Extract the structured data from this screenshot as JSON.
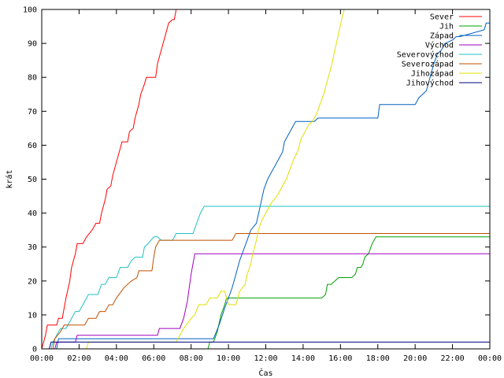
{
  "chart_data": {
    "type": "line",
    "title": "",
    "xlabel": "Čas",
    "ylabel": "krát",
    "x_unit": "hours",
    "xlim": [
      0,
      24
    ],
    "ylim": [
      0,
      100
    ],
    "x_ticks": [
      {
        "value": 0,
        "label": "00:00"
      },
      {
        "value": 2,
        "label": "02:00"
      },
      {
        "value": 4,
        "label": "04:00"
      },
      {
        "value": 6,
        "label": "06:00"
      },
      {
        "value": 8,
        "label": "08:00"
      },
      {
        "value": 10,
        "label": "10:00"
      },
      {
        "value": 12,
        "label": "12:00"
      },
      {
        "value": 14,
        "label": "14:00"
      },
      {
        "value": 16,
        "label": "16:00"
      },
      {
        "value": 18,
        "label": "18:00"
      },
      {
        "value": 20,
        "label": "20:00"
      },
      {
        "value": 22,
        "label": "22:00"
      },
      {
        "value": 24,
        "label": "00:00"
      }
    ],
    "y_ticks": [
      0,
      10,
      20,
      30,
      40,
      50,
      60,
      70,
      80,
      90,
      100
    ],
    "grid": false,
    "legend_position": "top-right",
    "series": [
      {
        "name": "Sever",
        "color": "#ff0000",
        "points": [
          [
            0,
            0
          ],
          [
            0.1,
            2
          ],
          [
            0.2,
            4
          ],
          [
            0.3,
            7
          ],
          [
            0.8,
            7
          ],
          [
            0.9,
            9
          ],
          [
            1.1,
            9
          ],
          [
            1.3,
            15
          ],
          [
            1.5,
            20
          ],
          [
            1.6,
            24
          ],
          [
            1.8,
            28
          ],
          [
            1.9,
            31
          ],
          [
            2.2,
            31
          ],
          [
            2.4,
            33
          ],
          [
            2.7,
            35
          ],
          [
            2.9,
            37
          ],
          [
            3.1,
            37
          ],
          [
            3.2,
            40
          ],
          [
            3.4,
            44
          ],
          [
            3.5,
            47
          ],
          [
            3.7,
            48
          ],
          [
            3.8,
            51
          ],
          [
            4,
            55
          ],
          [
            4.2,
            59
          ],
          [
            4.3,
            61
          ],
          [
            4.6,
            61
          ],
          [
            4.7,
            64
          ],
          [
            4.9,
            65
          ],
          [
            5,
            68
          ],
          [
            5.2,
            72
          ],
          [
            5.3,
            75
          ],
          [
            5.5,
            78
          ],
          [
            5.6,
            80
          ],
          [
            6.1,
            80
          ],
          [
            6.2,
            84
          ],
          [
            6.4,
            88
          ],
          [
            6.6,
            92
          ],
          [
            6.8,
            96
          ],
          [
            7,
            97
          ],
          [
            7.1,
            97
          ],
          [
            7.2,
            100
          ],
          [
            24,
            100
          ]
        ]
      },
      {
        "name": "Jih",
        "color": "#00a000",
        "points": [
          [
            0,
            0
          ],
          [
            8.9,
            0
          ],
          [
            9.0,
            2
          ],
          [
            9.2,
            2
          ],
          [
            9.4,
            5
          ],
          [
            9.6,
            10
          ],
          [
            9.8,
            13
          ],
          [
            9.9,
            15
          ],
          [
            10.4,
            15
          ],
          [
            10.6,
            15
          ],
          [
            11.0,
            15
          ],
          [
            11.2,
            15
          ],
          [
            15.0,
            15
          ],
          [
            15.2,
            16
          ],
          [
            15.3,
            19
          ],
          [
            15.5,
            19
          ],
          [
            15.9,
            21
          ],
          [
            16.6,
            21
          ],
          [
            16.8,
            22
          ],
          [
            16.9,
            24
          ],
          [
            17.1,
            24
          ],
          [
            17.2,
            25
          ],
          [
            17.3,
            27
          ],
          [
            17.5,
            28
          ],
          [
            17.7,
            31
          ],
          [
            17.9,
            33
          ],
          [
            18.9,
            33
          ],
          [
            19,
            33
          ],
          [
            24,
            33
          ]
        ]
      },
      {
        "name": "Západ",
        "color": "#0060c0",
        "points": [
          [
            0,
            0
          ],
          [
            0.8,
            0
          ],
          [
            0.9,
            3
          ],
          [
            1.2,
            3
          ],
          [
            9.0,
            3
          ],
          [
            9.2,
            3
          ],
          [
            9.5,
            7
          ],
          [
            9.8,
            12
          ],
          [
            10.0,
            15
          ],
          [
            10.2,
            18
          ],
          [
            10.4,
            22
          ],
          [
            10.6,
            26
          ],
          [
            10.8,
            29
          ],
          [
            11.0,
            32
          ],
          [
            11.2,
            35
          ],
          [
            11.5,
            37
          ],
          [
            11.7,
            42
          ],
          [
            11.9,
            47
          ],
          [
            12.1,
            50
          ],
          [
            12.3,
            52
          ],
          [
            12.5,
            54
          ],
          [
            12.7,
            56
          ],
          [
            12.9,
            58
          ],
          [
            13.0,
            61
          ],
          [
            13.2,
            63
          ],
          [
            13.4,
            65
          ],
          [
            13.6,
            67
          ],
          [
            14.6,
            67
          ],
          [
            14.8,
            68
          ],
          [
            16.2,
            68
          ],
          [
            18.0,
            68
          ],
          [
            18.1,
            72
          ],
          [
            20.0,
            72
          ],
          [
            20.2,
            74
          ],
          [
            20.6,
            76
          ],
          [
            20.8,
            80
          ],
          [
            21.0,
            84
          ],
          [
            21.2,
            87
          ],
          [
            21.4,
            88
          ],
          [
            21.6,
            90
          ],
          [
            22.0,
            91
          ],
          [
            22.2,
            92
          ],
          [
            22.4,
            92
          ],
          [
            23.7,
            94
          ],
          [
            23.8,
            96
          ],
          [
            24,
            96
          ]
        ]
      },
      {
        "name": "Východ",
        "color": "#a000c0",
        "points": [
          [
            0,
            0
          ],
          [
            0.7,
            0
          ],
          [
            0.8,
            2
          ],
          [
            1.0,
            2
          ],
          [
            1.8,
            2
          ],
          [
            1.9,
            4
          ],
          [
            6.2,
            4
          ],
          [
            6.3,
            6
          ],
          [
            7.4,
            6
          ],
          [
            7.6,
            9
          ],
          [
            7.8,
            14
          ],
          [
            7.9,
            18
          ],
          [
            8.0,
            22
          ],
          [
            8.1,
            25
          ],
          [
            8.2,
            28
          ],
          [
            24,
            28
          ]
        ]
      },
      {
        "name": "Severovýchod",
        "color": "#20c0c0",
        "points": [
          [
            0,
            0
          ],
          [
            0.5,
            0
          ],
          [
            0.6,
            2
          ],
          [
            0.8,
            4
          ],
          [
            1.0,
            6
          ],
          [
            1.3,
            6
          ],
          [
            1.6,
            9
          ],
          [
            1.8,
            11
          ],
          [
            2.0,
            11
          ],
          [
            2.2,
            13
          ],
          [
            2.5,
            16
          ],
          [
            3.0,
            16
          ],
          [
            3.2,
            19
          ],
          [
            3.4,
            19
          ],
          [
            3.6,
            21
          ],
          [
            4.0,
            21
          ],
          [
            4.2,
            24
          ],
          [
            4.6,
            24
          ],
          [
            4.8,
            26
          ],
          [
            5.0,
            27
          ],
          [
            5.4,
            27
          ],
          [
            5.5,
            30
          ],
          [
            5.7,
            31
          ],
          [
            6.0,
            33
          ],
          [
            6.2,
            33
          ],
          [
            6.4,
            32
          ],
          [
            7.0,
            32
          ],
          [
            7.2,
            34
          ],
          [
            8.1,
            34
          ],
          [
            8.3,
            37
          ],
          [
            8.5,
            40
          ],
          [
            8.7,
            42
          ],
          [
            24,
            42
          ]
        ]
      },
      {
        "name": "Severozápad",
        "color": "#c05000",
        "points": [
          [
            0,
            0
          ],
          [
            0.6,
            0
          ],
          [
            0.7,
            3
          ],
          [
            1.0,
            5
          ],
          [
            1.2,
            7
          ],
          [
            2.3,
            7
          ],
          [
            2.5,
            9
          ],
          [
            2.9,
            9
          ],
          [
            3.1,
            11
          ],
          [
            3.4,
            11
          ],
          [
            3.6,
            13
          ],
          [
            3.8,
            13
          ],
          [
            4.0,
            15
          ],
          [
            4.4,
            18
          ],
          [
            4.8,
            20
          ],
          [
            5.1,
            21
          ],
          [
            5.2,
            23
          ],
          [
            5.9,
            23
          ],
          [
            6.0,
            27
          ],
          [
            6.1,
            30
          ],
          [
            6.3,
            32
          ],
          [
            10.2,
            32
          ],
          [
            10.4,
            34
          ],
          [
            24,
            34
          ]
        ]
      },
      {
        "name": "Jihozápad",
        "color": "#e0e000",
        "points": [
          [
            0,
            0
          ],
          [
            2.4,
            0
          ],
          [
            2.5,
            2
          ],
          [
            7.2,
            2
          ],
          [
            7.4,
            4
          ],
          [
            7.6,
            6
          ],
          [
            8.0,
            9
          ],
          [
            8.2,
            10
          ],
          [
            8.4,
            13
          ],
          [
            8.8,
            13
          ],
          [
            9.0,
            15
          ],
          [
            9.4,
            15
          ],
          [
            9.6,
            17
          ],
          [
            9.8,
            17
          ],
          [
            10.0,
            13
          ],
          [
            10.4,
            13
          ],
          [
            10.5,
            15
          ],
          [
            10.6,
            17
          ],
          [
            10.9,
            19
          ],
          [
            11.0,
            22
          ],
          [
            11.2,
            25
          ],
          [
            11.3,
            28
          ],
          [
            11.5,
            32
          ],
          [
            11.6,
            35
          ],
          [
            11.8,
            38
          ],
          [
            12.0,
            40
          ],
          [
            12.3,
            43
          ],
          [
            12.6,
            45
          ],
          [
            12.9,
            48
          ],
          [
            13.1,
            50
          ],
          [
            13.3,
            53
          ],
          [
            13.5,
            56
          ],
          [
            13.7,
            58
          ],
          [
            13.9,
            62
          ],
          [
            14.1,
            64
          ],
          [
            14.3,
            66
          ],
          [
            14.5,
            67
          ],
          [
            14.7,
            69
          ],
          [
            14.9,
            72
          ],
          [
            15.1,
            75
          ],
          [
            15.3,
            79
          ],
          [
            15.5,
            83
          ],
          [
            15.7,
            88
          ],
          [
            15.9,
            93
          ],
          [
            16.1,
            98
          ],
          [
            16.2,
            100
          ],
          [
            24,
            100
          ]
        ]
      },
      {
        "name": "Jihovýchod",
        "color": "#000080",
        "points": [
          [
            0,
            0
          ],
          [
            0.4,
            0
          ],
          [
            0.5,
            2
          ],
          [
            24,
            2
          ]
        ]
      }
    ]
  }
}
